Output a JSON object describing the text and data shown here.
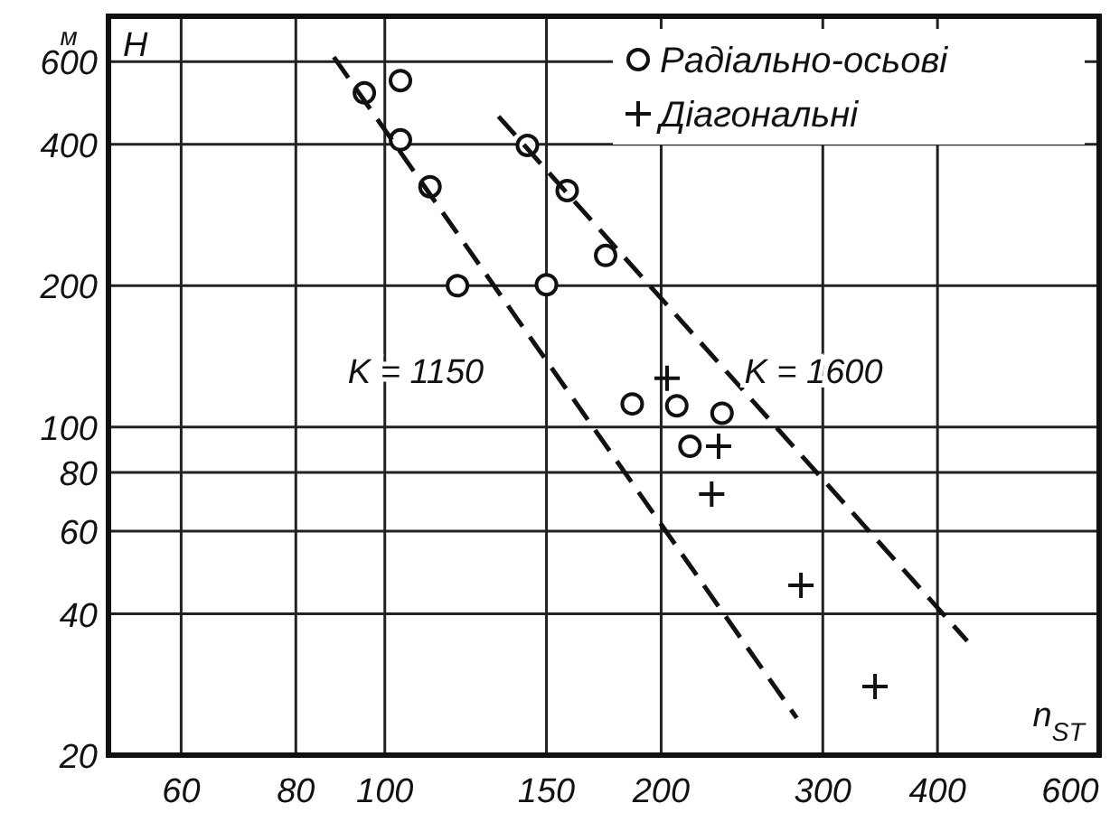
{
  "chart_data": {
    "type": "scatter",
    "xlabel": "n$_{ST}$",
    "ylabel": "H",
    "log": "xy",
    "grid": true,
    "legend": "top right",
    "xlim": [
      50,
      600
    ],
    "ylim": [
      20,
      750
    ],
    "xticks": [
      60,
      80,
      100,
      150,
      200,
      300,
      400,
      600
    ],
    "yticks": [
      20,
      40,
      60,
      80,
      100,
      200,
      400,
      600
    ],
    "annotations": [
      "м",
      "K = 1150",
      "K = 1600"
    ],
    "series": [
      {
        "name": "Радіально-осьові",
        "type": "scatter",
        "marker": "circle",
        "color": "#111111",
        "x": [
          95,
          104,
          104,
          112,
          120,
          143,
          158,
          150,
          174,
          186,
          208,
          233,
          215
        ],
        "values": [
          515,
          547,
          409,
          325,
          200,
          398,
          319,
          201,
          232,
          112,
          111,
          107,
          91
        ]
      },
      {
        "name": "Діагональні",
        "type": "scatter",
        "marker": "cross",
        "color": "#111111",
        "x": [
          203,
          231,
          227,
          284,
          342
        ],
        "values": [
          127,
          91,
          72,
          46,
          28
        ]
      },
      {
        "type": "line",
        "line_style": "dashed",
        "marker": "none",
        "color": "#111111",
        "x": [
          88,
          281
        ],
        "values": [
          614,
          24
        ]
      },
      {
        "type": "line",
        "line_style": "dashed",
        "marker": "none",
        "color": "#111111",
        "x": [
          133,
          431
        ],
        "values": [
          459,
          35
        ]
      }
    ]
  }
}
